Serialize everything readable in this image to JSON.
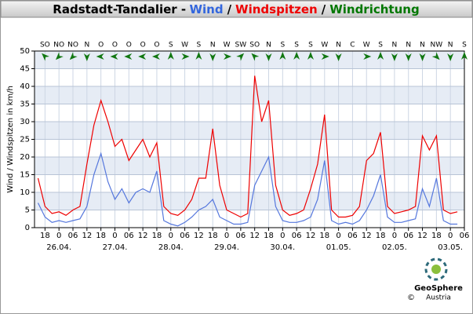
{
  "chart_data": {
    "type": "line",
    "title_parts": [
      {
        "text": "Radstadt-Tandalier -",
        "color": "#000000"
      },
      {
        "text": "Wind",
        "color": "#3366dd"
      },
      {
        "text": "/",
        "color": "#000000"
      },
      {
        "text": "Windspitzen",
        "color": "#ee0000"
      },
      {
        "text": "/",
        "color": "#000000"
      },
      {
        "text": "Windrichtung",
        "color": "#007700"
      }
    ],
    "ylabel": "Wind / Windspitzen in km/h",
    "ylim": [
      0,
      50
    ],
    "yticks": [
      0,
      5,
      10,
      15,
      20,
      25,
      30,
      35,
      40,
      45,
      50
    ],
    "xlim": [
      -10.5,
      174
    ],
    "xticks": [
      {
        "value": -6,
        "label": "18"
      },
      0,
      {
        "value": 6,
        "label": "06"
      },
      12,
      18,
      {
        "value": 24,
        "label": "0"
      },
      {
        "value": 30,
        "label": "06"
      },
      {
        "value": 36,
        "label": "12"
      },
      {
        "value": 42,
        "label": "18"
      },
      {
        "value": 48,
        "label": "0"
      },
      {
        "value": 54,
        "label": "06"
      },
      {
        "value": 60,
        "label": "12"
      },
      {
        "value": 66,
        "label": "18"
      },
      {
        "value": 72,
        "label": "0"
      },
      {
        "value": 78,
        "label": "06"
      },
      {
        "value": 84,
        "label": "12"
      },
      {
        "value": 90,
        "label": "18"
      },
      {
        "value": 96,
        "label": "0"
      },
      {
        "value": 102,
        "label": "06"
      },
      {
        "value": 108,
        "label": "12"
      },
      {
        "value": 114,
        "label": "18"
      },
      {
        "value": 120,
        "label": "0"
      },
      {
        "value": 126,
        "label": "06"
      },
      {
        "value": 132,
        "label": "12"
      },
      {
        "value": 138,
        "label": "18"
      },
      {
        "value": 144,
        "label": "0"
      },
      {
        "value": 150,
        "label": "06"
      },
      {
        "value": 156,
        "label": "12"
      },
      {
        "value": 162,
        "label": "18"
      },
      {
        "value": 168,
        "label": "0"
      },
      {
        "value": 174,
        "label": "06"
      }
    ],
    "date_labels": [
      {
        "value": 0,
        "label": "26.04."
      },
      {
        "value": 24,
        "label": "27.04."
      },
      {
        "value": 48,
        "label": "28.04."
      },
      {
        "value": 72,
        "label": "29.04."
      },
      {
        "value": 96,
        "label": "30.04."
      },
      {
        "value": 120,
        "label": "01.05."
      },
      {
        "value": 144,
        "label": "02.05."
      },
      {
        "value": 168,
        "label": "03.05."
      }
    ],
    "directions": {
      "x": [
        -6,
        0,
        6,
        12,
        18,
        24,
        30,
        36,
        42,
        48,
        54,
        60,
        66,
        72,
        78,
        84,
        90,
        96,
        102,
        108,
        114,
        120,
        126,
        132,
        138,
        144,
        150,
        156,
        162,
        168,
        174
      ],
      "labels": [
        "SO",
        "NO",
        "NO",
        "N",
        "O",
        "O",
        "O",
        "O",
        "O",
        "S",
        "W",
        "S",
        "N",
        "W",
        "SW",
        "SO",
        "N",
        "S",
        "S",
        "S",
        "W",
        "N",
        "C",
        "W",
        "S",
        "N",
        "N",
        "N",
        "NW",
        "N",
        "S"
      ],
      "color": "#117711"
    },
    "grid": true,
    "x": [
      -9,
      -6,
      -3,
      0,
      3,
      6,
      9,
      12,
      15,
      18,
      21,
      24,
      27,
      30,
      33,
      36,
      39,
      42,
      45,
      48,
      51,
      54,
      57,
      60,
      63,
      66,
      69,
      72,
      75,
      78,
      81,
      84,
      87,
      90,
      93,
      96,
      99,
      102,
      105,
      108,
      111,
      114,
      117,
      120,
      123,
      126,
      129,
      132,
      135,
      138,
      141,
      144,
      147,
      150,
      153,
      156,
      159,
      162,
      165,
      168,
      171
    ],
    "series": [
      {
        "name": "Windspitzen",
        "color": "#ee0000",
        "values": [
          14,
          6,
          4,
          4.5,
          3.5,
          5,
          6,
          18,
          29,
          36,
          30,
          23,
          25,
          19,
          22,
          25,
          20,
          24,
          6,
          4,
          3.5,
          5,
          8,
          14,
          14,
          28,
          12,
          5,
          4,
          3,
          4,
          43,
          30,
          36,
          12,
          5,
          3.5,
          4,
          5,
          11,
          18,
          32,
          5,
          3,
          3,
          3.5,
          6,
          19,
          21,
          27,
          6,
          4,
          4.5,
          5,
          6,
          26,
          22,
          26,
          5,
          4,
          4.5
        ]
      },
      {
        "name": "Wind",
        "color": "#5577dd",
        "values": [
          7,
          3,
          1.5,
          2,
          1.5,
          2,
          2.5,
          6,
          15,
          21,
          13,
          8,
          11,
          7,
          10,
          11,
          10,
          16,
          2,
          1,
          0.5,
          1.5,
          3,
          5,
          6,
          8,
          3,
          2,
          1,
          1,
          1.5,
          12,
          16,
          20,
          6,
          2,
          1.5,
          1.5,
          2,
          3,
          8,
          19,
          2,
          1,
          1.5,
          1,
          2,
          5,
          9,
          15,
          3,
          1.5,
          1.5,
          2,
          2.5,
          11,
          6,
          14,
          2,
          1,
          1
        ]
      }
    ],
    "footer": {
      "brand": "GeoSphere",
      "country": "Austria",
      "copyright": "©"
    }
  }
}
